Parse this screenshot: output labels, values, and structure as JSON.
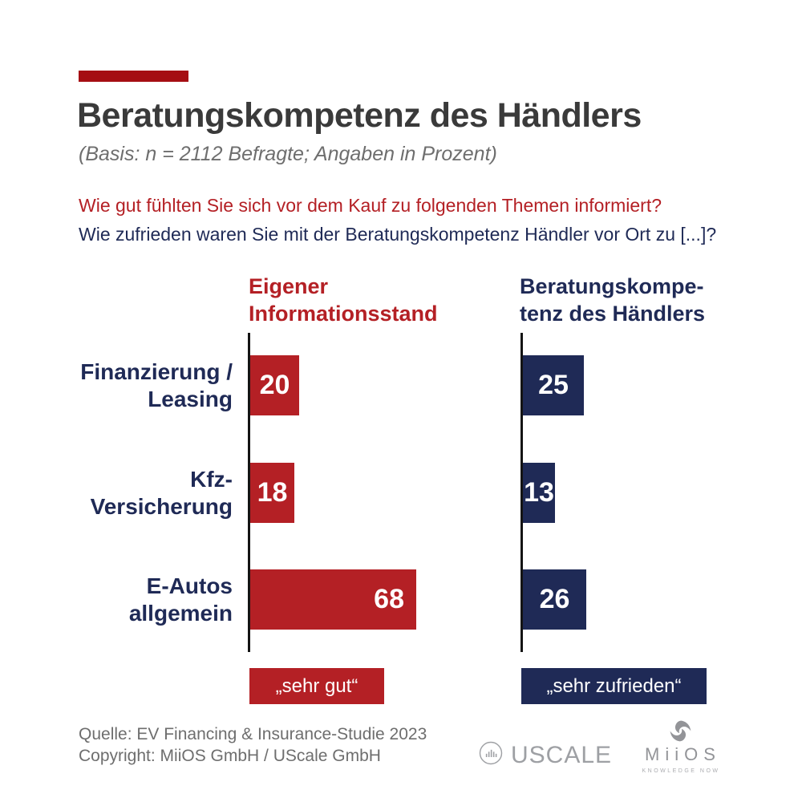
{
  "colors": {
    "accent": "#A50E13",
    "red": "#B42025",
    "navy": "#1F2A56",
    "title_gray": "#3A3A3A",
    "muted_gray": "#6E6E6E",
    "logo_gray": "#9EA0A4",
    "axis_black": "#141414",
    "background": "#FFFFFF"
  },
  "header": {
    "title": "Beratungskompetenz des Händlers",
    "subtitle": "(Basis: n = 2112 Befragte; Angaben in Prozent)",
    "question_informed": "Wie gut fühlten Sie sich vor dem Kauf zu folgenden Themen informiert?",
    "question_satisfaction": "Wie zufrieden waren Sie mit der Beratungskompetenz Händler vor Ort zu [...]?"
  },
  "chart_data": {
    "type": "bar",
    "orientation": "horizontal",
    "unit": "percent",
    "xlim": [
      0,
      70
    ],
    "grid": false,
    "categories": [
      "Finanzierung / Leasing",
      "Kfz-Versicherung",
      "E-Autos allgemein"
    ],
    "categories_display": [
      [
        "Finanzierung /",
        "Leasing"
      ],
      [
        "Kfz-",
        "Versicherung"
      ],
      [
        "E-Autos",
        "allgemein"
      ]
    ],
    "series": [
      {
        "name": "Eigener Informationsstand",
        "name_display": [
          "Eigener",
          "Informationsstand"
        ],
        "color": "#B42025",
        "values": [
          20,
          18,
          68
        ],
        "scale_badge": "„sehr gut“"
      },
      {
        "name": "Beratungskompetenz des Händlers",
        "name_display": [
          "Beratungskompe-",
          "tenz des Händlers"
        ],
        "color": "#1F2A56",
        "values": [
          25,
          13,
          26
        ],
        "scale_badge": "„sehr zufrieden“"
      }
    ]
  },
  "footer": {
    "source": "Quelle: EV Financing & Insurance-Studie 2023",
    "copyright": "Copyright: MiiOS GmbH / UScale GmbH"
  },
  "logos": {
    "uscale": {
      "text": "USCALE"
    },
    "miios": {
      "text": "MiiOS",
      "tagline": "KNOWLEDGE NOW"
    }
  }
}
